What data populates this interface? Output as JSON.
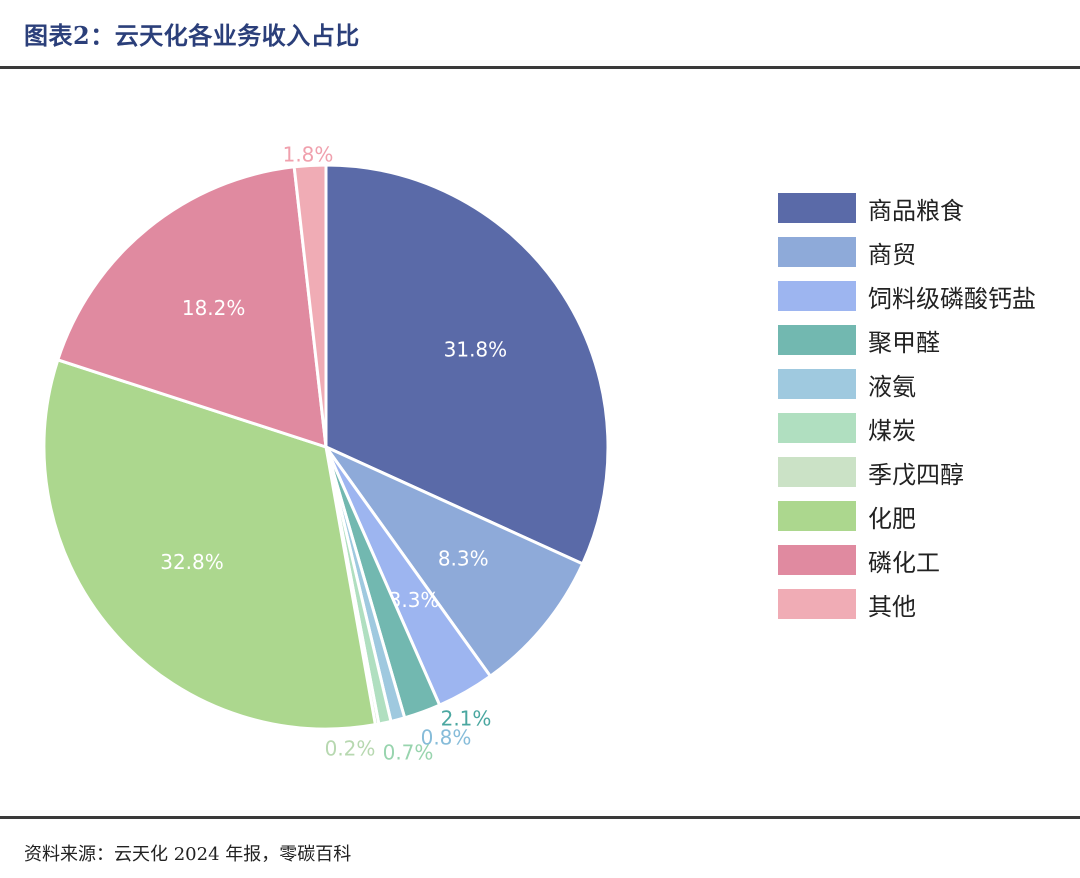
{
  "title": "图表2：云天化各业务收入占比",
  "source": "资料来源：云天化 2024 年报，零碳百科",
  "chart_data": {
    "type": "pie",
    "legend_position": "right",
    "slices": [
      {
        "name": "商品粮食",
        "value": 31.8,
        "label": "31.8%",
        "color": "#5a6aa8"
      },
      {
        "name": "商贸",
        "value": 8.3,
        "label": "8.3%",
        "color": "#8eaad9"
      },
      {
        "name": "饲料级磷酸钙盐",
        "value": 3.3,
        "label": "3.3%",
        "color": "#9db5f0"
      },
      {
        "name": "聚甲醛",
        "value": 2.1,
        "label": "2.1%",
        "color": "#72b8b0"
      },
      {
        "name": "液氨",
        "value": 0.8,
        "label": "0.8%",
        "color": "#9fc9df"
      },
      {
        "name": "煤炭",
        "value": 0.7,
        "label": "0.7%",
        "color": "#b0dfc0"
      },
      {
        "name": "季戊四醇",
        "value": 0.2,
        "label": "0.2%",
        "color": "#cbe2c6"
      },
      {
        "name": "化肥",
        "value": 32.8,
        "label": "32.8%",
        "color": "#acd78e"
      },
      {
        "name": "磷化工",
        "value": 18.2,
        "label": "18.2%",
        "color": "#e08aa0"
      },
      {
        "name": "其他",
        "value": 1.8,
        "label": "1.8%",
        "color": "#f0acb5"
      }
    ]
  }
}
